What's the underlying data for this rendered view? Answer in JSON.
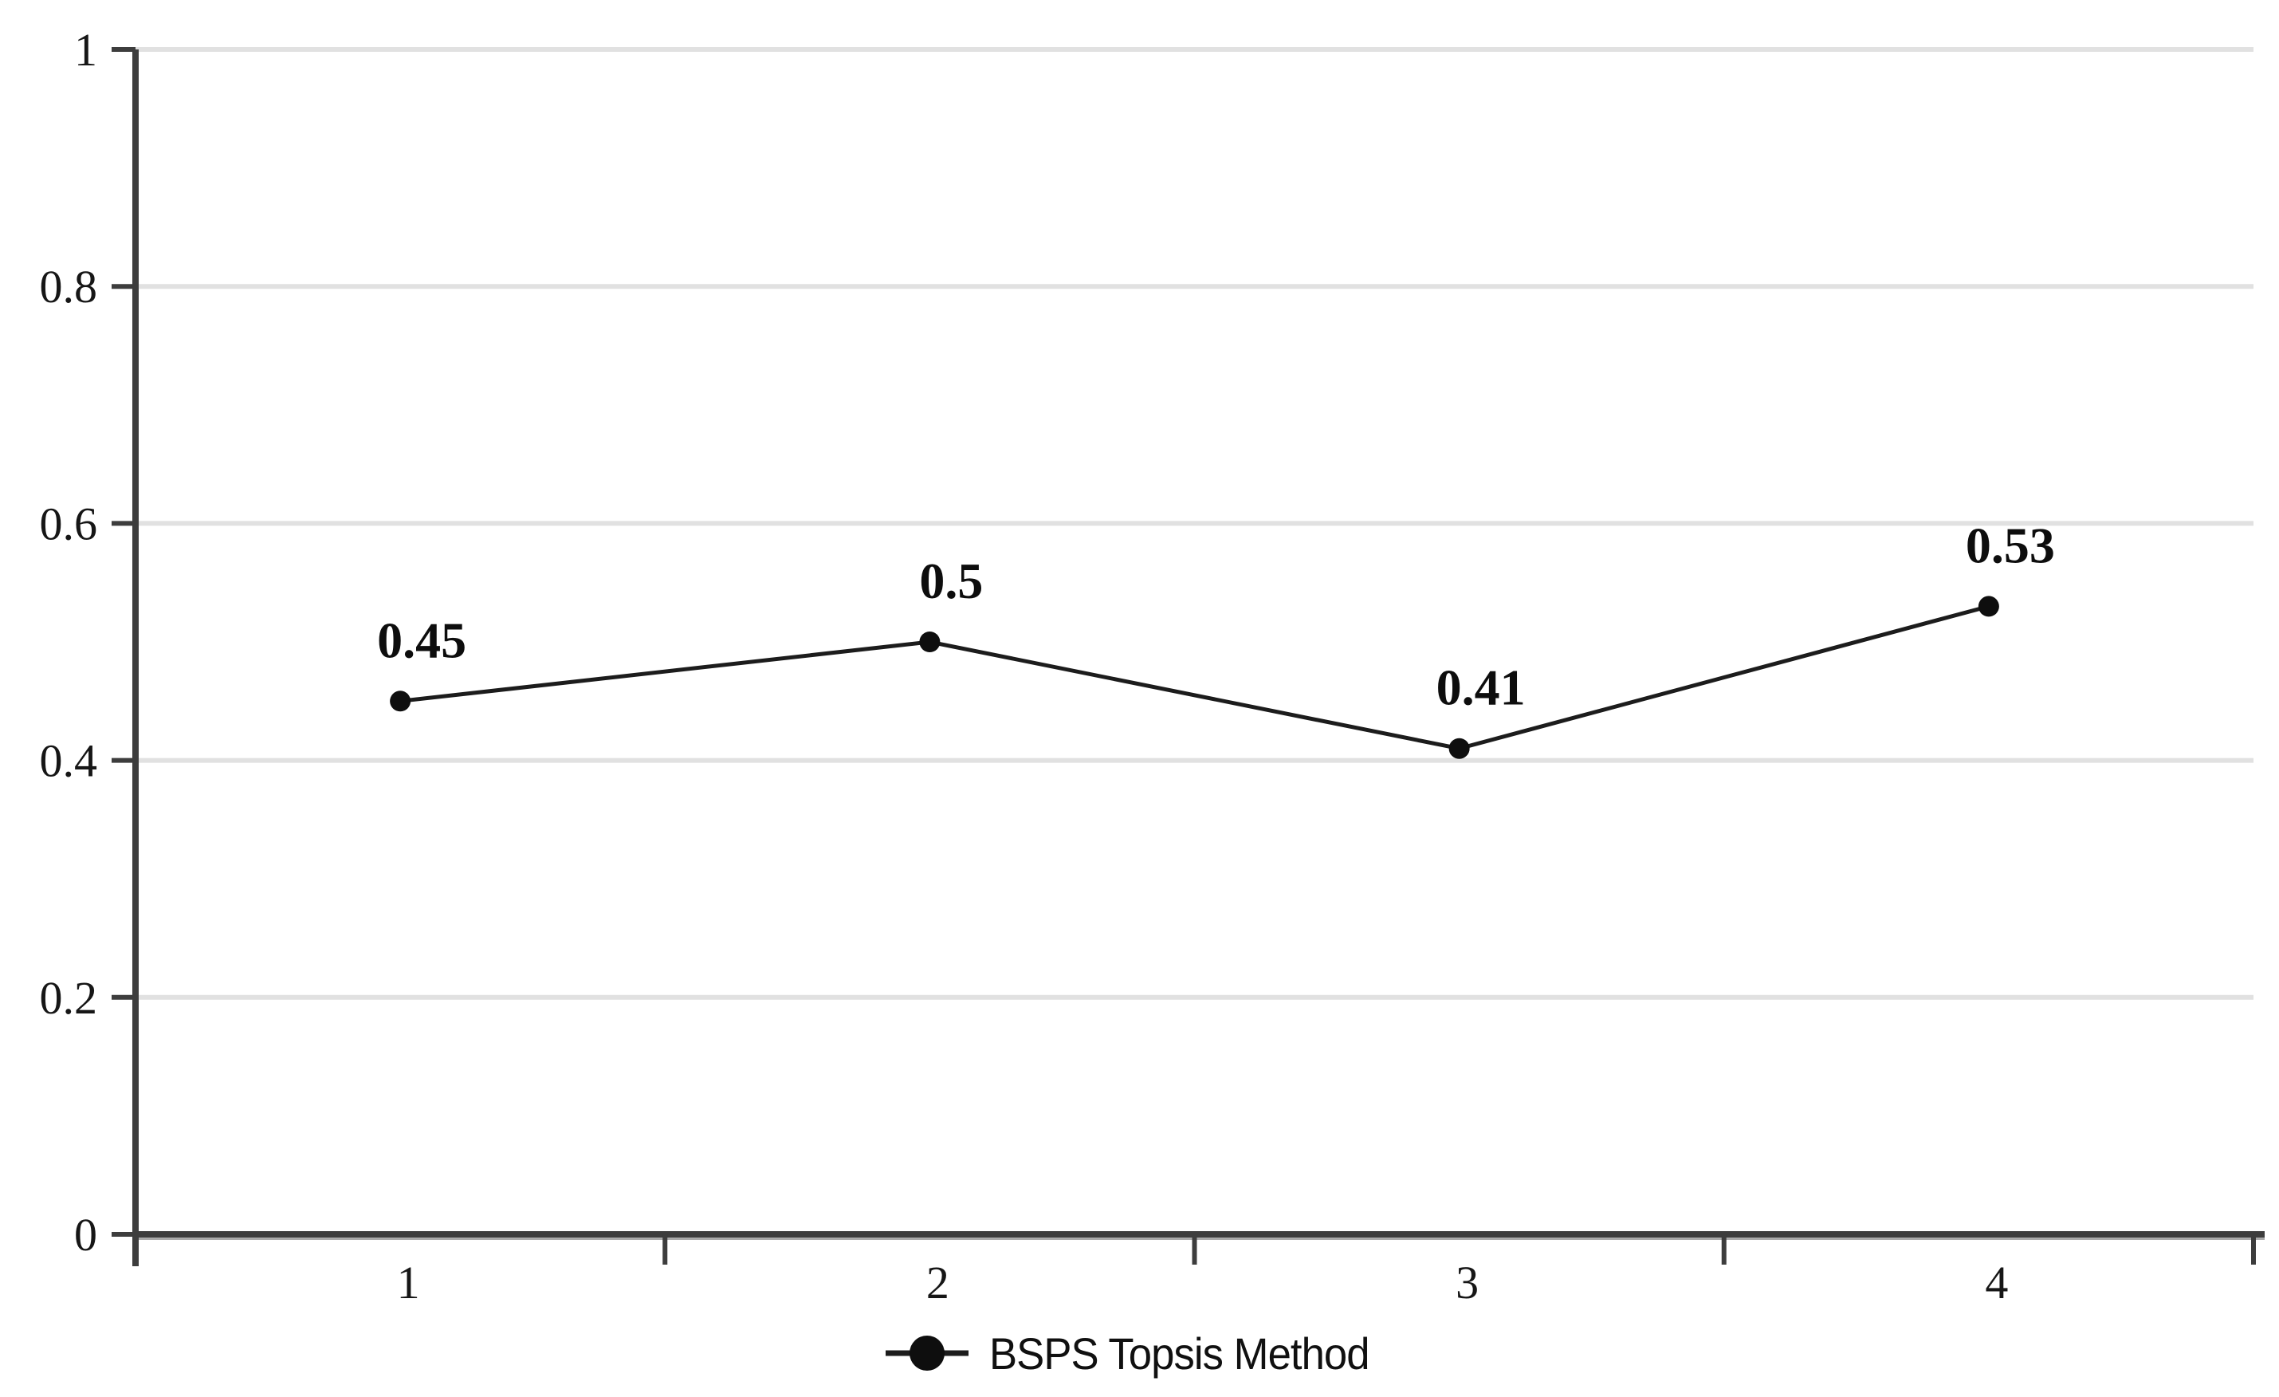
{
  "chart_data": {
    "type": "line",
    "categories": [
      "1",
      "2",
      "3",
      "4"
    ],
    "series": [
      {
        "name": "BSPS Topsis Method",
        "values": [
          0.45,
          0.5,
          0.41,
          0.53
        ]
      }
    ],
    "data_labels": [
      "0.45",
      "0.5",
      "0.41",
      "0.53"
    ],
    "title": "",
    "xlabel": "",
    "ylabel": "",
    "ylim": [
      0,
      1
    ],
    "yticks": [
      0,
      0.2,
      0.4,
      0.6,
      0.8,
      1
    ],
    "ytick_labels": [
      "0",
      "0.2",
      "0.4",
      "0.6",
      "0.8",
      "1"
    ],
    "grid": "horizontal gridlines only, light gray",
    "legend_position": "bottom-center",
    "legend": {
      "marker": "filled-circle-on-line",
      "label": "BSPS Topsis Method"
    },
    "colors": {
      "background": "#ffffff",
      "gridline": "#e1e1e1",
      "axis_line": "#3d3d3d",
      "axis_shadow": "#aaaaaa",
      "series_line": "#1c1c1c",
      "marker_fill": "#0e0e0e",
      "text": "#111111"
    }
  }
}
